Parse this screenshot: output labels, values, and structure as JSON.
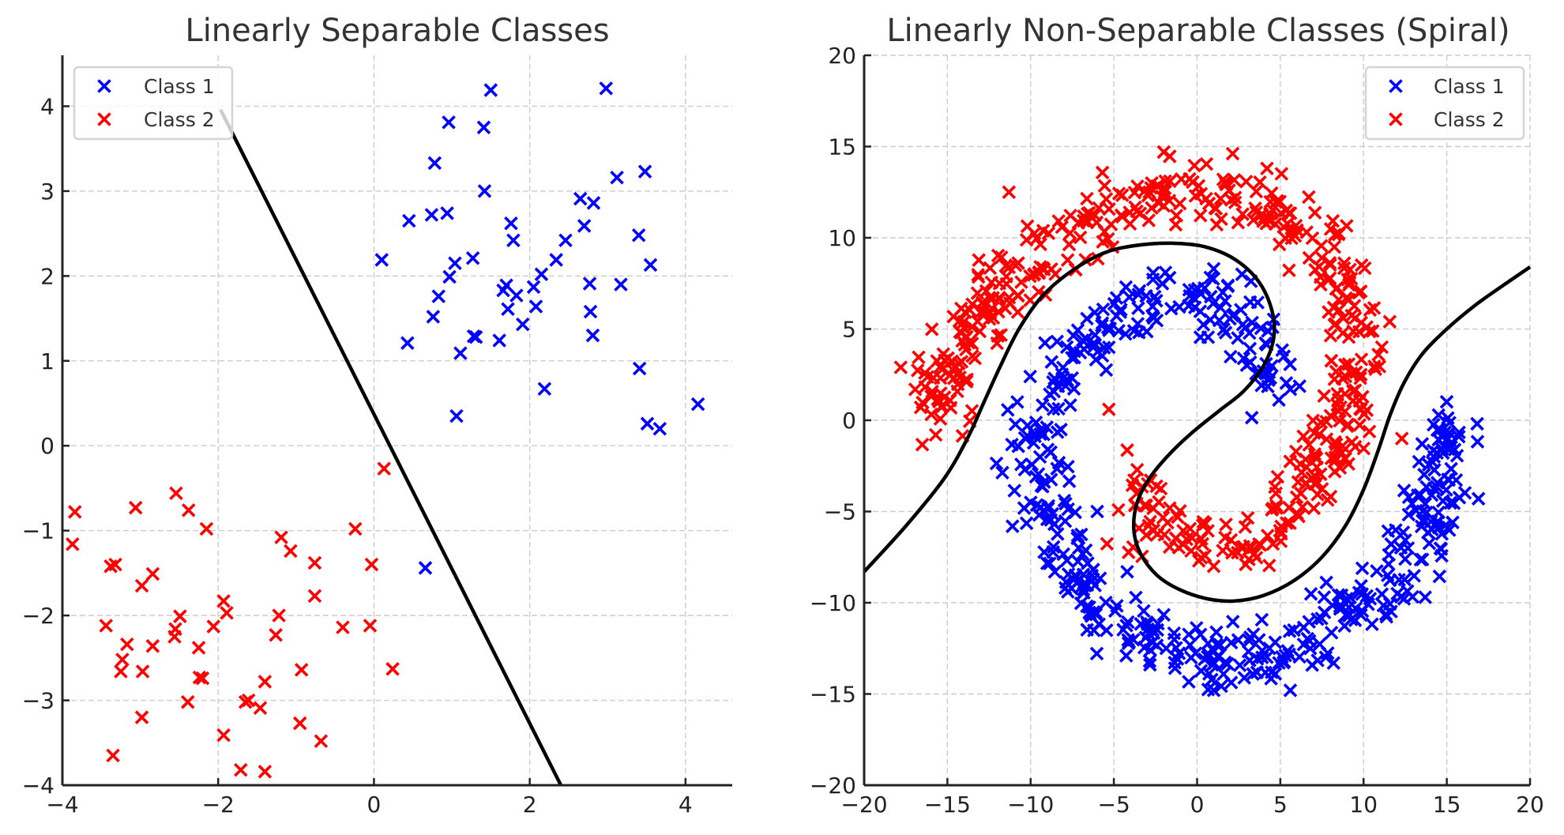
{
  "chart_data": [
    {
      "type": "scatter",
      "title": "Linearly Separable Classes",
      "xlabel": "",
      "ylabel": "",
      "xlim": [
        -4,
        4.6
      ],
      "ylim": [
        -4,
        4.6
      ],
      "xticks": [
        -4,
        -2,
        0,
        2,
        4
      ],
      "xtick_labels": [
        "−4",
        "−2",
        "0",
        "2",
        "4"
      ],
      "yticks": [
        -4,
        -3,
        -2,
        -1,
        0,
        1,
        2,
        3,
        4
      ],
      "ytick_labels": [
        "−4",
        "−3",
        "−2",
        "−1",
        "0",
        "1",
        "2",
        "3",
        "4"
      ],
      "grid": true,
      "legend_position": "top-left",
      "marker": "x",
      "series": [
        {
          "name": "Class 1",
          "color": "#0000ff",
          "points": [
            [
              1.5,
              4.19
            ],
            [
              2.98,
              4.21
            ],
            [
              0.96,
              3.81
            ],
            [
              1.41,
              3.75
            ],
            [
              0.78,
              3.33
            ],
            [
              1.42,
              3.0
            ],
            [
              3.48,
              3.23
            ],
            [
              3.12,
              3.16
            ],
            [
              2.65,
              2.91
            ],
            [
              2.82,
              2.86
            ],
            [
              0.45,
              2.65
            ],
            [
              0.74,
              2.72
            ],
            [
              0.94,
              2.74
            ],
            [
              1.76,
              2.62
            ],
            [
              1.79,
              2.42
            ],
            [
              2.7,
              2.59
            ],
            [
              2.46,
              2.42
            ],
            [
              3.4,
              2.48
            ],
            [
              0.1,
              2.19
            ],
            [
              1.04,
              2.15
            ],
            [
              1.27,
              2.21
            ],
            [
              2.34,
              2.19
            ],
            [
              2.15,
              2.02
            ],
            [
              3.55,
              2.13
            ],
            [
              0.97,
              1.99
            ],
            [
              1.7,
              1.89
            ],
            [
              1.66,
              1.83
            ],
            [
              1.83,
              1.77
            ],
            [
              2.05,
              1.87
            ],
            [
              2.77,
              1.91
            ],
            [
              3.17,
              1.9
            ],
            [
              0.83,
              1.76
            ],
            [
              1.72,
              1.61
            ],
            [
              2.08,
              1.64
            ],
            [
              2.78,
              1.58
            ],
            [
              0.76,
              1.52
            ],
            [
              1.91,
              1.43
            ],
            [
              2.81,
              1.3
            ],
            [
              0.43,
              1.21
            ],
            [
              1.28,
              1.29
            ],
            [
              1.31,
              1.28
            ],
            [
              1.61,
              1.24
            ],
            [
              1.11,
              1.09
            ],
            [
              3.41,
              0.91
            ],
            [
              2.19,
              0.67
            ],
            [
              4.16,
              0.49
            ],
            [
              1.06,
              0.35
            ],
            [
              3.51,
              0.26
            ],
            [
              3.67,
              0.2
            ],
            [
              0.66,
              -1.44
            ]
          ]
        },
        {
          "name": "Class 2",
          "color": "#ff0000",
          "points": [
            [
              0.13,
              -0.27
            ],
            [
              -3.84,
              -0.78
            ],
            [
              -3.06,
              -0.73
            ],
            [
              -2.54,
              -0.56
            ],
            [
              -2.38,
              -0.76
            ],
            [
              -2.15,
              -0.98
            ],
            [
              -3.87,
              -1.16
            ],
            [
              -0.24,
              -0.98
            ],
            [
              -1.19,
              -1.08
            ],
            [
              -1.07,
              -1.24
            ],
            [
              -0.76,
              -1.38
            ],
            [
              -0.03,
              -1.4
            ],
            [
              -3.38,
              -1.42
            ],
            [
              -3.32,
              -1.4
            ],
            [
              -2.84,
              -1.51
            ],
            [
              -2.98,
              -1.65
            ],
            [
              -0.76,
              -1.77
            ],
            [
              -1.93,
              -1.83
            ],
            [
              -1.89,
              -1.97
            ],
            [
              -3.44,
              -2.12
            ],
            [
              -2.49,
              -2.01
            ],
            [
              -2.55,
              -2.16
            ],
            [
              -2.56,
              -2.25
            ],
            [
              -2.06,
              -2.13
            ],
            [
              -1.22,
              -2.0
            ],
            [
              -1.26,
              -2.23
            ],
            [
              -0.4,
              -2.14
            ],
            [
              -0.05,
              -2.12
            ],
            [
              -3.17,
              -2.34
            ],
            [
              -2.84,
              -2.36
            ],
            [
              -2.25,
              -2.38
            ],
            [
              -3.23,
              -2.52
            ],
            [
              -3.25,
              -2.66
            ],
            [
              -2.97,
              -2.66
            ],
            [
              -2.24,
              -2.73
            ],
            [
              -2.2,
              -2.74
            ],
            [
              -0.93,
              -2.64
            ],
            [
              0.24,
              -2.63
            ],
            [
              -1.4,
              -2.78
            ],
            [
              -2.39,
              -3.02
            ],
            [
              -1.65,
              -3.02
            ],
            [
              -1.61,
              -3.0
            ],
            [
              -1.46,
              -3.09
            ],
            [
              -2.98,
              -3.2
            ],
            [
              -0.95,
              -3.27
            ],
            [
              -1.93,
              -3.41
            ],
            [
              -0.68,
              -3.48
            ],
            [
              -3.35,
              -3.65
            ],
            [
              -1.71,
              -3.82
            ],
            [
              -1.4,
              -3.84
            ]
          ]
        }
      ],
      "decision_boundary": {
        "color": "#000000",
        "points": [
          [
            -1.97,
            3.96
          ],
          [
            2.4,
            -4.0
          ]
        ]
      }
    },
    {
      "type": "scatter",
      "title": "Linearly Non-Separable Classes (Spiral)",
      "xlabel": "",
      "ylabel": "",
      "xlim": [
        -20,
        20
      ],
      "ylim": [
        -20,
        20
      ],
      "xticks": [
        -20,
        -15,
        -10,
        -5,
        0,
        5,
        10,
        15,
        20
      ],
      "xtick_labels": [
        "−20",
        "−15",
        "−10",
        "−5",
        "0",
        "5",
        "10",
        "15",
        "20"
      ],
      "yticks": [
        -20,
        -15,
        -10,
        -5,
        0,
        5,
        10,
        15,
        20
      ],
      "ytick_labels": [
        "−20",
        "−15",
        "−10",
        "−5",
        "0",
        "5",
        "10",
        "15",
        "20"
      ],
      "grid": true,
      "legend_position": "top-right",
      "marker": "x",
      "series": [
        {
          "name": "Class 1",
          "color": "#0000ff",
          "arm": [
            [
              4.5,
              2.3
            ],
            [
              3.5,
              2.6
            ],
            [
              4.2,
              4.2
            ],
            [
              3.0,
              5.5
            ],
            [
              1.5,
              6.5
            ],
            [
              0,
              7.0
            ],
            [
              -1.5,
              7.2
            ],
            [
              -3.0,
              6.6
            ],
            [
              -4.5,
              5.5
            ],
            [
              -6.0,
              4.5
            ],
            [
              -7.5,
              3.2
            ],
            [
              -8.8,
              1.6
            ],
            [
              -9.6,
              0
            ],
            [
              -9.8,
              -2.0
            ],
            [
              -9.5,
              -4.0
            ],
            [
              -8.8,
              -6.0
            ],
            [
              -7.7,
              -8.0
            ],
            [
              -6.3,
              -9.8
            ],
            [
              -4.5,
              -11.2
            ],
            [
              -2.5,
              -12.2
            ],
            [
              0,
              -12.8
            ],
            [
              2.5,
              -13.0
            ],
            [
              5.0,
              -12.6
            ],
            [
              7.5,
              -11.6
            ],
            [
              10.0,
              -10.2
            ],
            [
              12.0,
              -8.3
            ],
            [
              13.6,
              -6.0
            ],
            [
              14.6,
              -3.5
            ],
            [
              15.0,
              -1.2
            ],
            [
              15.2,
              0.2
            ]
          ],
          "spread": 0.9,
          "count": 500,
          "outliers": [
            [
              1.0,
              8.3
            ],
            [
              -1.9,
              8.1
            ],
            [
              2.7,
              8.0
            ],
            [
              5.6,
              1.7
            ],
            [
              4.3,
              2.2
            ],
            [
              -5.3,
              4.0
            ],
            [
              -10.8,
              1.0
            ],
            [
              -6.0,
              -5.0
            ],
            [
              -4.2,
              -8.3
            ],
            [
              1.0,
              -14.8
            ],
            [
              5.6,
              -14.8
            ],
            [
              8.2,
              -13.3
            ],
            [
              16.9,
              -4.3
            ],
            [
              13.7,
              -9.7
            ]
          ]
        },
        {
          "name": "Class 2",
          "color": "#ff0000",
          "arm": [
            [
              -3.2,
              -3.0
            ],
            [
              -3.5,
              -4.5
            ],
            [
              -2.5,
              -5.6
            ],
            [
              -1.0,
              -6.3
            ],
            [
              0.5,
              -6.6
            ],
            [
              2.0,
              -6.8
            ],
            [
              3.5,
              -6.5
            ],
            [
              5.0,
              -5.5
            ],
            [
              6.3,
              -4.2
            ],
            [
              7.4,
              -2.6
            ],
            [
              8.2,
              -0.8
            ],
            [
              9.0,
              1.0
            ],
            [
              9.6,
              3.0
            ],
            [
              9.6,
              5.0
            ],
            [
              9.0,
              7.0
            ],
            [
              7.8,
              9.0
            ],
            [
              6.0,
              10.7
            ],
            [
              3.8,
              11.8
            ],
            [
              1.2,
              12.5
            ],
            [
              -1.5,
              12.5
            ],
            [
              -4.0,
              12.0
            ],
            [
              -6.5,
              11.0
            ],
            [
              -9.0,
              9.6
            ],
            [
              -11.2,
              7.8
            ],
            [
              -13.0,
              6.0
            ],
            [
              -14.4,
              4.0
            ],
            [
              -15.3,
              2.0
            ],
            [
              -15.6,
              0.0
            ]
          ],
          "spread": 0.9,
          "count": 500,
          "outliers": [
            [
              -11.3,
              12.5
            ],
            [
              -2.0,
              14.7
            ],
            [
              -5.3,
              0.6
            ],
            [
              12.3,
              -1.0
            ],
            [
              4.2,
              13.8
            ],
            [
              -17.8,
              2.9
            ],
            [
              -15.7,
              -0.8
            ],
            [
              1.0,
              -8.0
            ]
          ]
        }
      ],
      "decision_boundary": {
        "color": "#000000",
        "points": [
          [
            -20,
            -8.3
          ],
          [
            -17.5,
            -5.8
          ],
          [
            -15.2,
            -3.2
          ],
          [
            -13.8,
            -1.0
          ],
          [
            -12.8,
            1.0
          ],
          [
            -11.8,
            3.0
          ],
          [
            -10.7,
            5.0
          ],
          [
            -9.3,
            6.8
          ],
          [
            -7.5,
            8.2
          ],
          [
            -5.5,
            9.2
          ],
          [
            -3.5,
            9.6
          ],
          [
            -1.5,
            9.7
          ],
          [
            0.5,
            9.5
          ],
          [
            2.3,
            8.8
          ],
          [
            3.7,
            7.6
          ],
          [
            4.5,
            6.0
          ],
          [
            4.6,
            4.5
          ],
          [
            4.0,
            3.0
          ],
          [
            2.8,
            1.6
          ],
          [
            1.3,
            0.5
          ],
          [
            -0.2,
            -0.6
          ],
          [
            -1.6,
            -1.8
          ],
          [
            -2.8,
            -3.1
          ],
          [
            -3.6,
            -4.5
          ],
          [
            -3.8,
            -6.0
          ],
          [
            -3.4,
            -7.3
          ],
          [
            -2.4,
            -8.5
          ],
          [
            -1.0,
            -9.3
          ],
          [
            0.7,
            -9.8
          ],
          [
            2.3,
            -9.9
          ],
          [
            4.0,
            -9.6
          ],
          [
            5.8,
            -8.8
          ],
          [
            7.5,
            -7.5
          ],
          [
            8.9,
            -5.8
          ],
          [
            10.0,
            -3.8
          ],
          [
            10.9,
            -1.6
          ],
          [
            11.6,
            0.3
          ],
          [
            12.4,
            2.0
          ],
          [
            13.5,
            3.6
          ],
          [
            15.0,
            5.0
          ],
          [
            16.7,
            6.3
          ],
          [
            18.4,
            7.4
          ],
          [
            20,
            8.4
          ]
        ]
      }
    }
  ]
}
